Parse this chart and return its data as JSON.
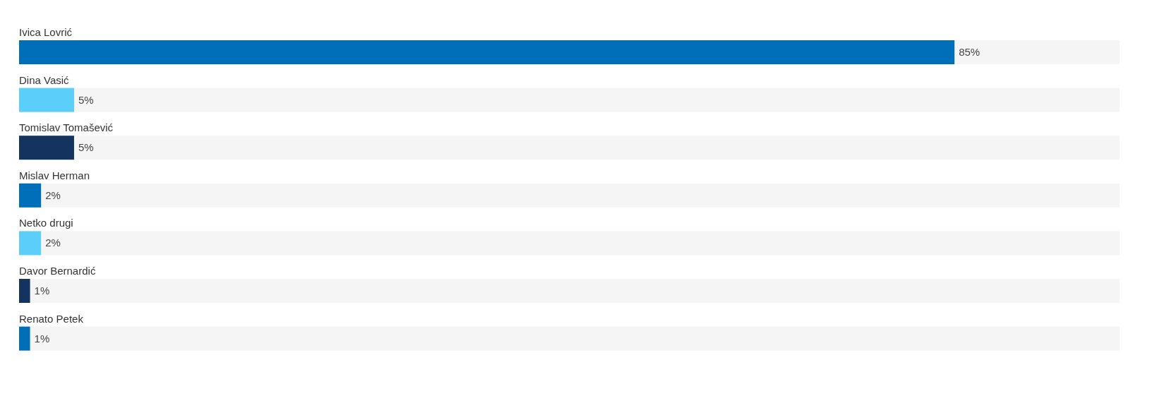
{
  "chart_data": {
    "type": "bar",
    "orientation": "horizontal",
    "categories": [
      "Ivica Lovrić",
      "Dina Vasić",
      "Tomislav Tomašević",
      "Mislav Herman",
      "Netko drugi",
      "Davor Bernardić",
      "Renato Petek"
    ],
    "values": [
      85,
      5,
      5,
      2,
      2,
      1,
      1
    ],
    "colors": [
      "#006fba",
      "#5ccefa",
      "#14335e",
      "#006fba",
      "#5ccefa",
      "#14335e",
      "#006fba"
    ],
    "xlim": [
      0,
      100
    ],
    "data_labels": true,
    "value_labels": [
      "85%",
      "5%",
      "5%",
      "2%",
      "2%",
      "1%",
      "1%"
    ]
  }
}
